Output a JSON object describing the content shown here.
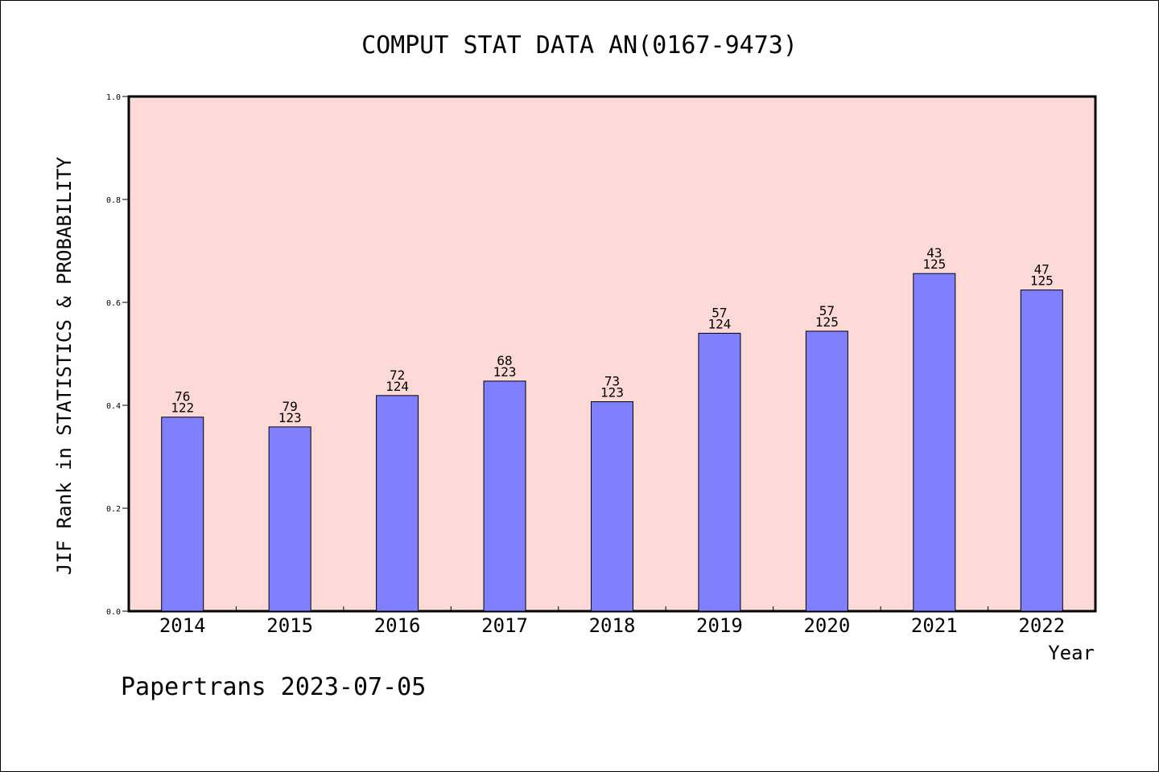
{
  "chart_data": {
    "type": "bar",
    "title": "COMPUT STAT DATA AN(0167-9473)",
    "xlabel": "Year",
    "ylabel": "JIF Rank in STATISTICS & PROBABILITY",
    "ylim": [
      0,
      1.0
    ],
    "yticks": [
      "0.0",
      "0.2",
      "0.4",
      "0.6",
      "0.8",
      "1.0"
    ],
    "categories": [
      "2014",
      "2015",
      "2016",
      "2017",
      "2018",
      "2019",
      "2020",
      "2021",
      "2022"
    ],
    "values": [
      0.377,
      0.358,
      0.419,
      0.447,
      0.407,
      0.54,
      0.544,
      0.656,
      0.624
    ],
    "rank_labels": [
      "76",
      "79",
      "72",
      "68",
      "73",
      "57",
      "57",
      "43",
      "47"
    ],
    "total_labels": [
      "122",
      "123",
      "124",
      "123",
      "123",
      "124",
      "125",
      "125",
      "125"
    ],
    "grid": false,
    "colors": {
      "bar": "#8080ff",
      "plot_background": "#fddad7",
      "bar_edge": "#000000"
    }
  },
  "footer": "Papertrans 2023-07-05"
}
